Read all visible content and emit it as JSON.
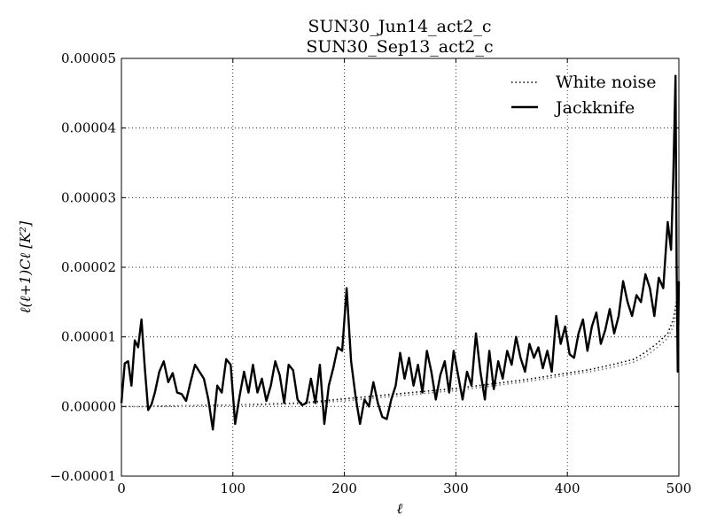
{
  "chart_data": {
    "type": "line",
    "title": [
      "SUN30_Jun14_act2_c",
      "SUN30_Sep13_act2_c"
    ],
    "xlabel": "ℓ",
    "ylabel": "ℓ(ℓ+1)Cℓ [K²]",
    "xlim": [
      0,
      500
    ],
    "ylim": [
      -1e-05,
      5e-05
    ],
    "xticks": [
      0,
      100,
      200,
      300,
      400,
      500
    ],
    "xtick_labels": [
      "0",
      "100",
      "200",
      "300",
      "400",
      "500"
    ],
    "yticks": [
      -1e-05,
      0,
      1e-05,
      2e-05,
      3e-05,
      4e-05,
      5e-05
    ],
    "ytick_labels": [
      "−0.00001",
      "0.00000",
      "0.00001",
      "0.00002",
      "0.00003",
      "0.00004",
      "0.00005"
    ],
    "grid": true,
    "legend_position": "top-right",
    "series": [
      {
        "name": "White noise",
        "style": "dotted",
        "color": "#000000",
        "x": [
          0,
          20,
          40,
          60,
          80,
          100,
          120,
          140,
          160,
          180,
          200,
          220,
          240,
          260,
          280,
          300,
          320,
          340,
          360,
          380,
          400,
          420,
          440,
          460,
          470,
          480,
          490,
          495,
          500
        ],
        "y": [
          0.0,
          0.0,
          1e-07,
          1e-07,
          2e-07,
          2e-07,
          3e-07,
          4e-07,
          5e-07,
          8e-07,
          1.1e-06,
          1.4e-06,
          1.7e-06,
          2e-06,
          2.3e-06,
          2.6e-06,
          3e-06,
          3.4e-06,
          3.8e-06,
          4.3e-06,
          4.8e-06,
          5.3e-06,
          6e-06,
          6.8e-06,
          7.8e-06,
          9e-06,
          1.05e-05,
          1.25e-05,
          1.7e-05
        ]
      },
      {
        "name": "White noise",
        "style": "dotted",
        "color": "#777777",
        "x": [
          0,
          20,
          40,
          60,
          80,
          100,
          120,
          140,
          160,
          180,
          200,
          220,
          240,
          260,
          280,
          300,
          320,
          340,
          360,
          380,
          400,
          420,
          440,
          460,
          470,
          480,
          490,
          495,
          500
        ],
        "y": [
          0.0,
          0.0,
          0.0,
          1e-07,
          1e-07,
          2e-07,
          2e-07,
          3e-07,
          4e-07,
          6e-07,
          8e-07,
          1.1e-06,
          1.4e-06,
          1.7e-06,
          2e-06,
          2.3e-06,
          2.7e-06,
          3.1e-06,
          3.5e-06,
          4e-06,
          4.5e-06,
          5e-06,
          5.6e-06,
          6.4e-06,
          7.2e-06,
          8.4e-06,
          9.8e-06,
          1.15e-05,
          1.5e-05
        ]
      },
      {
        "name": "Jackknife",
        "style": "solid",
        "color": "#000000",
        "x": [
          0,
          3,
          6,
          9,
          12,
          15,
          18,
          21,
          24,
          27,
          30,
          34,
          38,
          42,
          46,
          50,
          54,
          58,
          62,
          66,
          70,
          74,
          78,
          82,
          86,
          90,
          94,
          98,
          102,
          106,
          110,
          114,
          118,
          122,
          126,
          130,
          134,
          138,
          142,
          146,
          150,
          154,
          158,
          162,
          166,
          170,
          174,
          178,
          182,
          186,
          190,
          194,
          198,
          202,
          206,
          210,
          214,
          218,
          222,
          226,
          230,
          234,
          238,
          242,
          246,
          250,
          254,
          258,
          262,
          266,
          270,
          274,
          278,
          282,
          286,
          290,
          294,
          298,
          302,
          306,
          310,
          314,
          318,
          322,
          326,
          330,
          334,
          338,
          342,
          346,
          350,
          354,
          358,
          362,
          366,
          370,
          374,
          378,
          382,
          386,
          390,
          394,
          398,
          402,
          406,
          410,
          414,
          418,
          422,
          426,
          430,
          434,
          438,
          442,
          446,
          450,
          454,
          458,
          462,
          466,
          470,
          474,
          478,
          482,
          486,
          490,
          493,
          495,
          497,
          498,
          499,
          500
        ],
        "y": [
          5e-07,
          6.2e-06,
          6.5e-06,
          3e-06,
          9.5e-06,
          8.5e-06,
          1.25e-05,
          5.5e-06,
          -5e-07,
          3e-07,
          2e-06,
          5e-06,
          6.5e-06,
          3.5e-06,
          4.8e-06,
          2e-06,
          1.8e-06,
          8e-07,
          3.5e-06,
          6e-06,
          5e-06,
          4e-06,
          1e-06,
          -3.3e-06,
          3e-06,
          2e-06,
          6.8e-06,
          6e-06,
          -2.5e-06,
          1.5e-06,
          5e-06,
          2e-06,
          6e-06,
          2e-06,
          4e-06,
          8e-07,
          3e-06,
          6.5e-06,
          4.5e-06,
          5e-07,
          6e-06,
          5.2e-06,
          1e-06,
          2e-07,
          5e-07,
          4e-06,
          5e-07,
          6e-06,
          -2.5e-06,
          3e-06,
          5.5e-06,
          8.5e-06,
          8e-06,
          1.7e-05,
          6.5e-06,
          1.5e-06,
          -2.5e-06,
          1e-06,
          0.0,
          3.5e-06,
          5e-07,
          -1.5e-06,
          -1.8e-06,
          1e-06,
          3e-06,
          7.7e-06,
          4e-06,
          7e-06,
          3e-06,
          6e-06,
          2e-06,
          8e-06,
          5e-06,
          1e-06,
          4.5e-06,
          6.5e-06,
          2e-06,
          8e-06,
          4.5e-06,
          1e-06,
          5e-06,
          3e-06,
          1.05e-05,
          5e-06,
          1e-06,
          8e-06,
          2.5e-06,
          6.5e-06,
          4e-06,
          8e-06,
          6e-06,
          1e-05,
          7e-06,
          5e-06,
          9e-06,
          7e-06,
          8.5e-06,
          5.5e-06,
          8e-06,
          5e-06,
          1.3e-05,
          9e-06,
          1.15e-05,
          7.5e-06,
          7e-06,
          1.05e-05,
          1.25e-05,
          8e-06,
          1.15e-05,
          1.35e-05,
          9e-06,
          1.1e-05,
          1.4e-05,
          1.05e-05,
          1.3e-05,
          1.8e-05,
          1.5e-05,
          1.3e-05,
          1.6e-05,
          1.5e-05,
          1.9e-05,
          1.7e-05,
          1.3e-05,
          1.85e-05,
          1.7e-05,
          2.65e-05,
          2.25e-05,
          3.3e-05,
          4.75e-05,
          2e-05,
          5e-06,
          1.8e-05
        ]
      }
    ]
  }
}
